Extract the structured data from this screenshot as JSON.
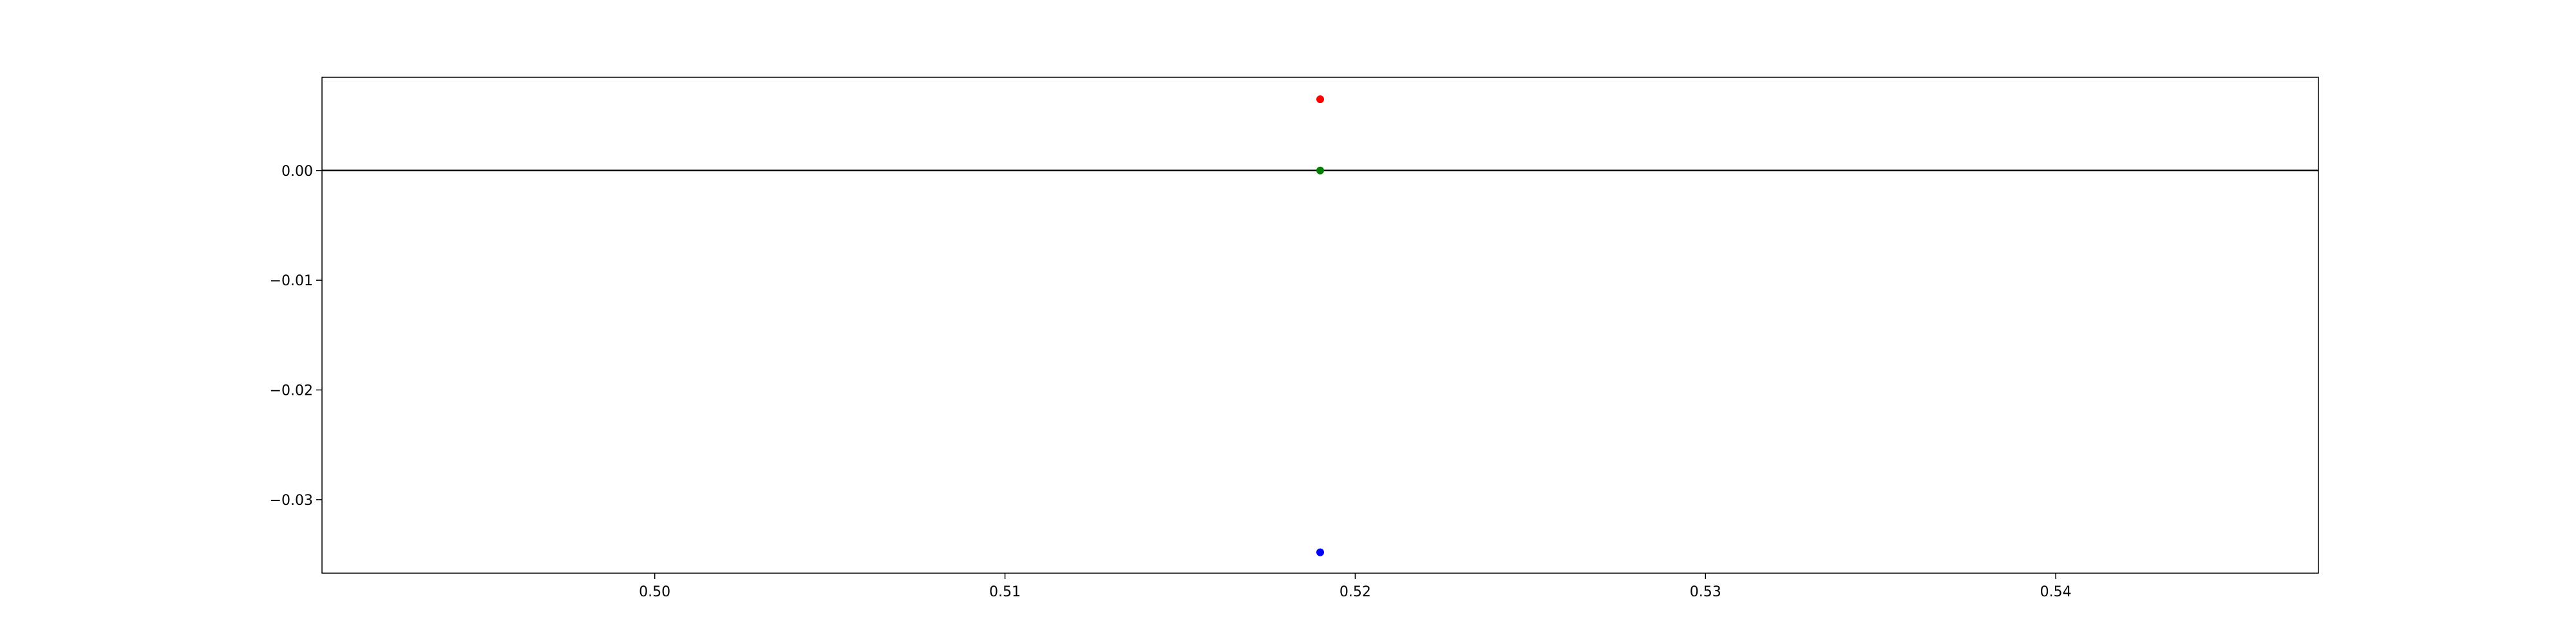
{
  "chart_data": {
    "type": "scatter",
    "x_ticks": [
      0.5,
      0.51,
      0.52,
      0.53,
      0.54
    ],
    "y_ticks": [
      0.0,
      -0.01,
      -0.02,
      -0.03
    ],
    "x_tick_labels": [
      "0.50",
      "0.51",
      "0.52",
      "0.53",
      "0.54"
    ],
    "y_tick_labels": [
      "0.00",
      "−0.01",
      "−0.02",
      "−0.03"
    ],
    "xlim": [
      0.4905,
      0.5475
    ],
    "ylim": [
      -0.0367,
      0.0085
    ],
    "reference_line_y": 0.0,
    "grid": false,
    "points": [
      {
        "x": 0.519,
        "y": 0.0065,
        "color": "#ff0000"
      },
      {
        "x": 0.519,
        "y": 0.0,
        "color": "#008000"
      },
      {
        "x": 0.519,
        "y": -0.0348,
        "color": "#0000ff"
      }
    ]
  }
}
